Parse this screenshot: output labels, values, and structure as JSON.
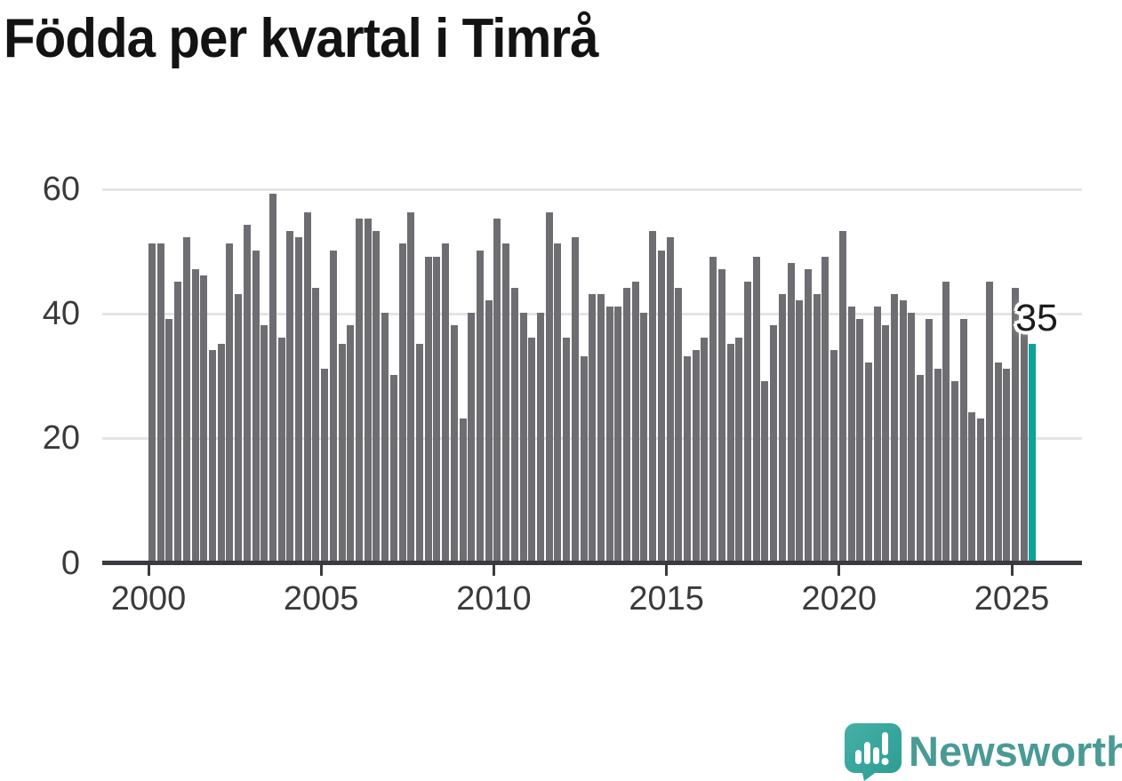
{
  "title": "Födda per kvartal i Timrå",
  "annotation": {
    "label": "35"
  },
  "y_axis": {
    "ticks": [
      "60",
      "40",
      "20",
      "0"
    ]
  },
  "x_axis": {
    "ticks": [
      "2000",
      "2005",
      "2010",
      "2015",
      "2020",
      "2025"
    ]
  },
  "footer": {
    "brand": "Newsworthy"
  },
  "colors": {
    "bar": "#6e6e72",
    "highlight": "#0ba39a",
    "grid": "#e4e4e4",
    "axis": "#3b3b3f",
    "tick_text": "#3a3a3a",
    "title_text": "#131313",
    "brand_bubble": "#35a69d",
    "brand_text": "#4a9a95"
  },
  "chart_data": {
    "type": "bar",
    "title": "Födda per kvartal i Timrå",
    "xlabel": "",
    "ylabel": "",
    "ylim": [
      0,
      65
    ],
    "y_ticks": [
      0,
      20,
      40,
      60
    ],
    "x_tick_labels": [
      "2000",
      "2005",
      "2010",
      "2015",
      "2020",
      "2025"
    ],
    "grid": "horizontal",
    "legend_position": "none",
    "bar_color": "#6e6e72",
    "highlight": {
      "category": "2025Q3",
      "value": 35,
      "color": "#0ba39a",
      "data_label": "35"
    },
    "categories": [
      "2000Q1",
      "2000Q2",
      "2000Q3",
      "2000Q4",
      "2001Q1",
      "2001Q2",
      "2001Q3",
      "2001Q4",
      "2002Q1",
      "2002Q2",
      "2002Q3",
      "2002Q4",
      "2003Q1",
      "2003Q2",
      "2003Q3",
      "2003Q4",
      "2004Q1",
      "2004Q2",
      "2004Q3",
      "2004Q4",
      "2005Q1",
      "2005Q2",
      "2005Q3",
      "2005Q4",
      "2006Q1",
      "2006Q2",
      "2006Q3",
      "2006Q4",
      "2007Q1",
      "2007Q2",
      "2007Q3",
      "2007Q4",
      "2008Q1",
      "2008Q2",
      "2008Q3",
      "2008Q4",
      "2009Q1",
      "2009Q2",
      "2009Q3",
      "2009Q4",
      "2010Q1",
      "2010Q2",
      "2010Q3",
      "2010Q4",
      "2011Q1",
      "2011Q2",
      "2011Q3",
      "2011Q4",
      "2012Q1",
      "2012Q2",
      "2012Q3",
      "2012Q4",
      "2013Q1",
      "2013Q2",
      "2013Q3",
      "2013Q4",
      "2014Q1",
      "2014Q2",
      "2014Q3",
      "2014Q4",
      "2015Q1",
      "2015Q2",
      "2015Q3",
      "2015Q4",
      "2016Q1",
      "2016Q2",
      "2016Q3",
      "2016Q4",
      "2017Q1",
      "2017Q2",
      "2017Q3",
      "2017Q4",
      "2018Q1",
      "2018Q2",
      "2018Q3",
      "2018Q4",
      "2019Q1",
      "2019Q2",
      "2019Q3",
      "2019Q4",
      "2020Q1",
      "2020Q2",
      "2020Q3",
      "2020Q4",
      "2021Q1",
      "2021Q2",
      "2021Q3",
      "2021Q4",
      "2022Q1",
      "2022Q2",
      "2022Q3",
      "2022Q4",
      "2023Q1",
      "2023Q2",
      "2023Q3",
      "2023Q4",
      "2024Q1",
      "2024Q2",
      "2024Q3",
      "2024Q4",
      "2025Q1",
      "2025Q2",
      "2025Q3"
    ],
    "values": [
      51,
      51,
      39,
      45,
      52,
      47,
      46,
      34,
      35,
      51,
      43,
      54,
      50,
      38,
      59,
      36,
      53,
      52,
      56,
      44,
      31,
      50,
      35,
      38,
      55,
      55,
      53,
      40,
      30,
      51,
      56,
      35,
      49,
      49,
      51,
      38,
      23,
      40,
      50,
      42,
      55,
      51,
      44,
      40,
      36,
      40,
      56,
      51,
      36,
      52,
      33,
      43,
      43,
      41,
      41,
      44,
      45,
      40,
      53,
      50,
      52,
      44,
      33,
      34,
      36,
      49,
      47,
      35,
      36,
      45,
      49,
      29,
      38,
      43,
      48,
      42,
      47,
      43,
      49,
      34,
      53,
      41,
      39,
      32,
      41,
      38,
      43,
      42,
      40,
      30,
      39,
      31,
      45,
      29,
      39,
      24,
      23,
      45,
      32,
      31,
      44,
      37,
      35
    ]
  }
}
